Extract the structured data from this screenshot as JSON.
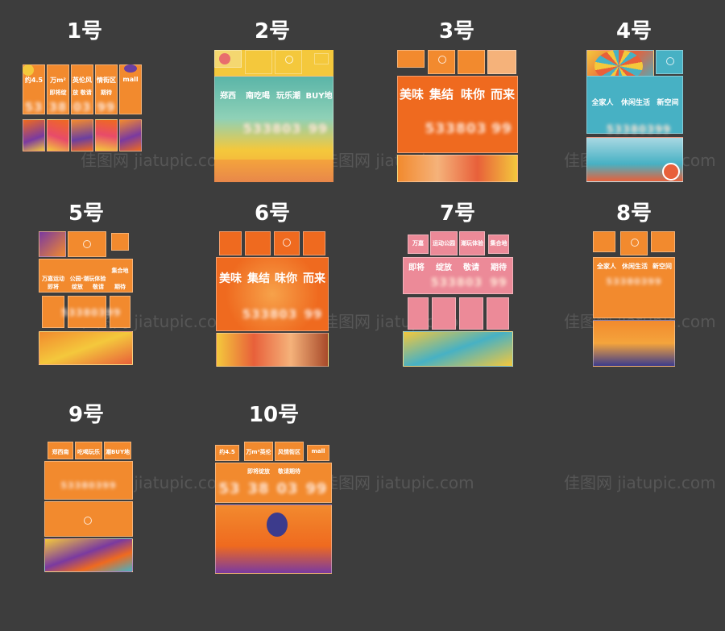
{
  "designs": [
    {
      "label": "1号",
      "texts": {
        "a": "约4.5",
        "b": "万m²",
        "c": "英伦风",
        "d": "情街区",
        "e": "mall",
        "f": "即将绽",
        "g": "放 敬请",
        "h": "期待",
        "n1": "53",
        "n2": "38",
        "n3": "03",
        "n4": "99"
      }
    },
    {
      "label": "2号",
      "texts": {
        "a": "郑西",
        "b": "南吃喝",
        "c": "玩乐潮",
        "d": "BUY地",
        "n": "533803",
        "n4": "99"
      }
    },
    {
      "label": "3号",
      "texts": {
        "a": "美味",
        "b": "集结",
        "c": "味你",
        "d": "而来",
        "n": "533803",
        "n4": "99"
      }
    },
    {
      "label": "4号",
      "texts": {
        "a": "全家人",
        "b": "休闲生活",
        "c": "新空间",
        "n": "53380399"
      }
    },
    {
      "label": "5号",
      "texts": {
        "a": "万嘉运动",
        "b": "公园·潮玩体验",
        "c": "集合地",
        "d": "即将",
        "e": "绽放",
        "f": "敬请",
        "g": "期待",
        "n": "53380399"
      }
    },
    {
      "label": "6号",
      "texts": {
        "a": "美味",
        "b": "集结",
        "c": "味你",
        "d": "而来",
        "n": "533803",
        "n4": "99"
      }
    },
    {
      "label": "7号",
      "texts": {
        "a": "万嘉",
        "b": "运动公园",
        "c": "潮玩体验",
        "d": "集合地",
        "e": "即将",
        "f": "绽放",
        "g": "敬请",
        "h": "期待",
        "n": "533803",
        "n4": "99"
      }
    },
    {
      "label": "8号",
      "texts": {
        "a": "全家人",
        "b": "休闲生活",
        "c": "新空间",
        "n": "53380399"
      }
    },
    {
      "label": "9号",
      "texts": {
        "a": "郑西南",
        "b": "吃喝玩乐",
        "c": "潮BUY地",
        "n": "53380399"
      }
    },
    {
      "label": "10号",
      "texts": {
        "a": "约4.5",
        "b": "万m²英伦",
        "c": "风情街区",
        "d": "mall",
        "e": "即将绽放",
        "f": "敬请期待",
        "n1": "53",
        "n2": "38",
        "n3": "03",
        "n4": "99"
      }
    }
  ],
  "watermark": "佳图网 jiatupic.com",
  "colors": {
    "orange": "#f28a2e",
    "deep_orange": "#ef6a1f",
    "yellow": "#f4c83c",
    "teal": "#47b1c4",
    "pink": "#ec8a98",
    "background": "#3d3d3d"
  }
}
